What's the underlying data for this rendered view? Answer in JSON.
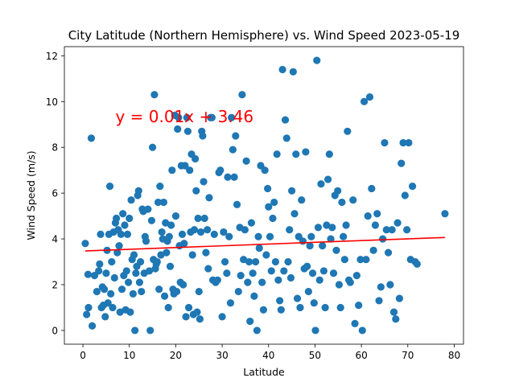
{
  "chart_data": {
    "type": "scatter",
    "title": "City Latitude (Northern Hemisphere) vs. Wind Speed 2023-05-19",
    "xlabel": "Latitude",
    "ylabel": "Wind Speed (m/s)",
    "xlim": [
      -4,
      82
    ],
    "ylim": [
      -0.6,
      12.4
    ],
    "xticks": [
      0,
      10,
      20,
      30,
      40,
      50,
      60,
      70,
      80
    ],
    "yticks": [
      0,
      2,
      4,
      6,
      8,
      10,
      12
    ],
    "grid": false,
    "point_color": "#1f77b4",
    "regression": {
      "equation": "y = 0.01x + 3.46",
      "slope": 0.0076,
      "intercept": 3.47,
      "color": "#ff0000",
      "equation_anchor": [
        7,
        9.1
      ]
    },
    "points": [
      [
        0.5,
        3.8
      ],
      [
        0.8,
        0.7
      ],
      [
        1.1,
        2.45
      ],
      [
        1.2,
        1.0
      ],
      [
        1.8,
        8.4
      ],
      [
        2.0,
        0.2
      ],
      [
        2.5,
        2.4
      ],
      [
        3.0,
        1.7
      ],
      [
        3.4,
        2.6
      ],
      [
        3.6,
        2.9
      ],
      [
        3.8,
        4.2
      ],
      [
        4.0,
        1.0
      ],
      [
        4.2,
        1.9
      ],
      [
        4.4,
        1.1
      ],
      [
        4.6,
        1.8
      ],
      [
        4.8,
        0.6
      ],
      [
        5.0,
        2.5
      ],
      [
        5.2,
        3.5
      ],
      [
        5.4,
        1.2
      ],
      [
        5.6,
        4.2
      ],
      [
        5.8,
        6.3
      ],
      [
        6.0,
        1.6
      ],
      [
        6.2,
        3.0
      ],
      [
        6.4,
        1.0
      ],
      [
        6.6,
        4.3
      ],
      [
        6.8,
        2.3
      ],
      [
        7.0,
        4.7
      ],
      [
        7.2,
        4.9
      ],
      [
        7.4,
        3.4
      ],
      [
        7.6,
        4.4
      ],
      [
        7.8,
        3.7
      ],
      [
        8.0,
        0.8
      ],
      [
        8.2,
        4.2
      ],
      [
        8.4,
        1.8
      ],
      [
        8.6,
        5.1
      ],
      [
        8.8,
        2.4
      ],
      [
        9.0,
        4.6
      ],
      [
        9.2,
        0.9
      ],
      [
        9.4,
        2.6
      ],
      [
        9.6,
        4.2
      ],
      [
        9.8,
        2.1
      ],
      [
        10.0,
        4.9
      ],
      [
        10.2,
        0.8
      ],
      [
        10.4,
        5.7
      ],
      [
        10.6,
        3.1
      ],
      [
        10.8,
        1.6
      ],
      [
        11.0,
        3.3
      ],
      [
        11.2,
        0.0
      ],
      [
        11.4,
        2.5
      ],
      [
        11.6,
        2.8
      ],
      [
        11.8,
        5.9
      ],
      [
        12.0,
        6.1
      ],
      [
        12.2,
        2.1
      ],
      [
        12.4,
        3.0
      ],
      [
        12.6,
        1.7
      ],
      [
        12.8,
        5.3
      ],
      [
        13.0,
        5.2
      ],
      [
        13.2,
        2.5
      ],
      [
        13.4,
        4.1
      ],
      [
        13.6,
        3.9
      ],
      [
        14.0,
        5.3
      ],
      [
        14.3,
        2.6
      ],
      [
        14.5,
        0.0
      ],
      [
        14.8,
        4.8
      ],
      [
        15.0,
        8.0
      ],
      [
        15.2,
        3.1
      ],
      [
        15.4,
        10.3
      ],
      [
        15.6,
        2.7
      ],
      [
        15.8,
        2.9
      ],
      [
        16.0,
        3.0
      ],
      [
        16.2,
        5.6
      ],
      [
        16.4,
        1.8
      ],
      [
        16.6,
        6.3
      ],
      [
        16.8,
        3.3
      ],
      [
        17.0,
        4.3
      ],
      [
        17.2,
        4.0
      ],
      [
        17.4,
        5.6
      ],
      [
        17.6,
        1.5
      ],
      [
        17.8,
        4.7
      ],
      [
        18.0,
        3.4
      ],
      [
        18.2,
        3.9
      ],
      [
        18.4,
        1.0
      ],
      [
        18.6,
        4.1
      ],
      [
        18.8,
        2.8
      ],
      [
        19.0,
        4.6
      ],
      [
        19.2,
        7.0
      ],
      [
        19.4,
        1.8
      ],
      [
        19.6,
        1.6
      ],
      [
        19.8,
        9.4
      ],
      [
        20.0,
        5.0
      ],
      [
        20.2,
        1.7
      ],
      [
        20.4,
        8.8
      ],
      [
        20.6,
        9.3
      ],
      [
        20.8,
        3.7
      ],
      [
        21.0,
        2.1
      ],
      [
        21.2,
        7.2
      ],
      [
        21.4,
        4.2
      ],
      [
        21.6,
        2.0
      ],
      [
        21.8,
        3.8
      ],
      [
        22.0,
        7.2
      ],
      [
        22.2,
        0.6
      ],
      [
        22.4,
        9.3
      ],
      [
        22.6,
        8.7
      ],
      [
        22.8,
        1.0
      ],
      [
        23.0,
        7.0
      ],
      [
        23.2,
        4.3
      ],
      [
        23.4,
        7.7
      ],
      [
        23.6,
        3.3
      ],
      [
        23.8,
        0.7
      ],
      [
        24.0,
        4.4
      ],
      [
        24.2,
        7.5
      ],
      [
        24.4,
        6.1
      ],
      [
        24.6,
        0.8
      ],
      [
        24.8,
        4.9
      ],
      [
        25.0,
        1.7
      ],
      [
        25.2,
        0.5
      ],
      [
        25.4,
        4.3
      ],
      [
        25.6,
        8.7
      ],
      [
        25.8,
        8.5
      ],
      [
        26.0,
        6.5
      ],
      [
        26.2,
        4.9
      ],
      [
        26.5,
        3.4
      ],
      [
        26.8,
        4.4
      ],
      [
        27.0,
        2.7
      ],
      [
        27.2,
        5.8
      ],
      [
        27.5,
        9.3
      ],
      [
        27.8,
        9.3
      ],
      [
        28.0,
        2.2
      ],
      [
        28.3,
        4.2
      ],
      [
        28.6,
        2.1
      ],
      [
        29.0,
        2.2
      ],
      [
        29.3,
        6.9
      ],
      [
        29.6,
        7.0
      ],
      [
        30.0,
        0.6
      ],
      [
        30.3,
        4.3
      ],
      [
        30.6,
        3.0
      ],
      [
        31.0,
        2.5
      ],
      [
        31.2,
        6.7
      ],
      [
        31.5,
        4.1
      ],
      [
        31.8,
        1.2
      ],
      [
        32.0,
        9.3
      ],
      [
        32.3,
        7.9
      ],
      [
        32.6,
        6.7
      ],
      [
        32.9,
        8.5
      ],
      [
        33.2,
        5.5
      ],
      [
        33.5,
        1.7
      ],
      [
        33.8,
        4.5
      ],
      [
        34.0,
        2.4
      ],
      [
        34.3,
        10.3
      ],
      [
        34.6,
        3.1
      ],
      [
        34.9,
        4.4
      ],
      [
        35.2,
        7.4
      ],
      [
        35.5,
        2.1
      ],
      [
        35.8,
        3.0
      ],
      [
        36.0,
        0.4
      ],
      [
        36.3,
        4.7
      ],
      [
        36.6,
        2.5
      ],
      [
        36.9,
        1.5
      ],
      [
        37.2,
        3.0
      ],
      [
        37.5,
        0.0
      ],
      [
        37.8,
        4.1
      ],
      [
        38.0,
        3.6
      ],
      [
        38.3,
        7.2
      ],
      [
        38.6,
        2.1
      ],
      [
        38.9,
        0.9
      ],
      [
        39.2,
        7.0
      ],
      [
        39.5,
        3.3
      ],
      [
        39.8,
        6.2
      ],
      [
        40.0,
        5.4
      ],
      [
        40.3,
        4.1
      ],
      [
        40.6,
        2.6
      ],
      [
        40.9,
        4.9
      ],
      [
        41.2,
        5.6
      ],
      [
        41.5,
        3.0
      ],
      [
        41.8,
        7.7
      ],
      [
        42.1,
        2.2
      ],
      [
        42.4,
        1.3
      ],
      [
        42.7,
        0.9
      ],
      [
        43.0,
        11.4
      ],
      [
        43.3,
        2.6
      ],
      [
        43.6,
        9.2
      ],
      [
        43.9,
        8.4
      ],
      [
        44.2,
        3.0
      ],
      [
        44.5,
        4.4
      ],
      [
        44.8,
        2.3
      ],
      [
        45.0,
        6.1
      ],
      [
        45.3,
        11.3
      ],
      [
        45.6,
        5.1
      ],
      [
        45.9,
        7.7
      ],
      [
        46.2,
        1.4
      ],
      [
        46.5,
        4.1
      ],
      [
        46.8,
        1.0
      ],
      [
        47.1,
        5.7
      ],
      [
        47.4,
        3.9
      ],
      [
        47.7,
        2.7
      ],
      [
        48.0,
        7.8
      ],
      [
        48.3,
        2.8
      ],
      [
        48.6,
        1.7
      ],
      [
        48.9,
        3.7
      ],
      [
        49.2,
        4.1
      ],
      [
        49.5,
        2.5
      ],
      [
        49.8,
        1.2
      ],
      [
        50.1,
        0.0
      ],
      [
        50.4,
        11.8
      ],
      [
        50.7,
        4.5
      ],
      [
        51.0,
        2.2
      ],
      [
        51.3,
        6.4
      ],
      [
        51.6,
        3.7
      ],
      [
        51.9,
        2.6
      ],
      [
        52.2,
        1.0
      ],
      [
        52.5,
        4.6
      ],
      [
        52.8,
        6.6
      ],
      [
        53.1,
        7.7
      ],
      [
        53.4,
        4.0
      ],
      [
        53.7,
        4.5
      ],
      [
        54.0,
        2.5
      ],
      [
        54.3,
        5.9
      ],
      [
        54.6,
        3.5
      ],
      [
        54.9,
        6.1
      ],
      [
        55.2,
        2.0
      ],
      [
        55.5,
        1.0
      ],
      [
        55.8,
        5.6
      ],
      [
        56.1,
        4.1
      ],
      [
        56.4,
        3.1
      ],
      [
        56.7,
        4.6
      ],
      [
        57.0,
        8.7
      ],
      [
        57.3,
        2.2
      ],
      [
        57.6,
        2.1
      ],
      [
        58.2,
        5.7
      ],
      [
        58.6,
        0.3
      ],
      [
        59.0,
        2.4
      ],
      [
        59.4,
        1.1
      ],
      [
        59.8,
        3.1
      ],
      [
        60.2,
        0.0
      ],
      [
        60.6,
        10.0
      ],
      [
        61.0,
        3.1
      ],
      [
        61.4,
        5.0
      ],
      [
        61.8,
        10.2
      ],
      [
        62.2,
        6.2
      ],
      [
        62.6,
        3.5
      ],
      [
        63.0,
        4.6
      ],
      [
        63.4,
        5.1
      ],
      [
        63.8,
        1.3
      ],
      [
        64.2,
        1.9
      ],
      [
        64.6,
        4.0
      ],
      [
        65.0,
        8.2
      ],
      [
        65.4,
        4.4
      ],
      [
        65.8,
        3.4
      ],
      [
        66.2,
        2.0
      ],
      [
        66.6,
        4.4
      ],
      [
        67.0,
        0.8
      ],
      [
        67.4,
        0.5
      ],
      [
        67.8,
        4.7
      ],
      [
        68.2,
        1.4
      ],
      [
        68.6,
        7.3
      ],
      [
        69.0,
        8.2
      ],
      [
        69.4,
        5.9
      ],
      [
        69.8,
        4.4
      ],
      [
        70.2,
        8.2
      ],
      [
        70.6,
        3.1
      ],
      [
        71.0,
        6.3
      ],
      [
        71.6,
        3.0
      ],
      [
        72.0,
        2.9
      ],
      [
        78.0,
        5.1
      ]
    ]
  }
}
